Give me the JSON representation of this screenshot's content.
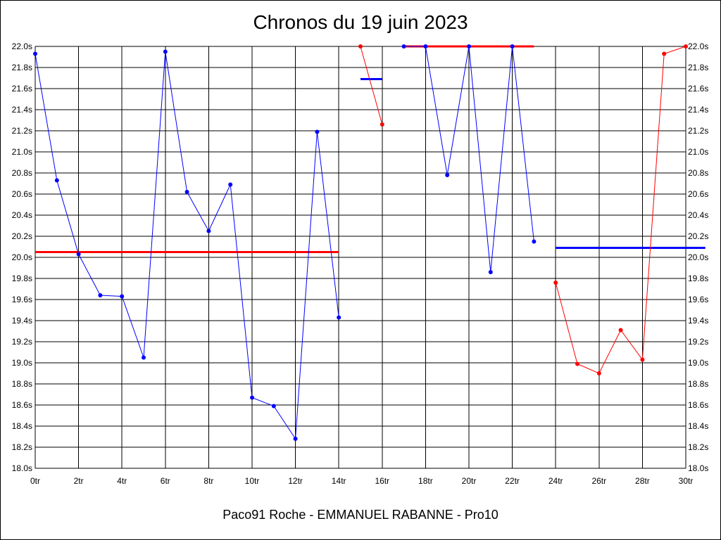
{
  "chart_data": {
    "type": "line",
    "title": "Chronos du 19 juin 2023",
    "subtitle": "Paco91 Roche - EMMANUEL RABANNE - Pro10",
    "xlabel": "",
    "ylabel": "",
    "xlim": [
      0,
      30
    ],
    "ylim": [
      18.0,
      22.0
    ],
    "grid": true,
    "legend": "none",
    "x_ticks": [
      "0tr",
      "2tr",
      "4tr",
      "6tr",
      "8tr",
      "10tr",
      "12tr",
      "14tr",
      "16tr",
      "18tr",
      "20tr",
      "22tr",
      "24tr",
      "26tr",
      "28tr",
      "30tr"
    ],
    "y_ticks": [
      "18.0s",
      "18.2s",
      "18.4s",
      "18.6s",
      "18.8s",
      "19.0s",
      "19.2s",
      "19.4s",
      "19.6s",
      "19.8s",
      "20.0s",
      "20.2s",
      "20.4s",
      "20.6s",
      "20.8s",
      "21.0s",
      "21.2s",
      "21.4s",
      "21.6s",
      "21.8s",
      "22.0s"
    ],
    "series": [
      {
        "color": "#0000ff",
        "points": [
          [
            0,
            21.93
          ],
          [
            1,
            20.73
          ],
          [
            2,
            20.03
          ],
          [
            3,
            19.64
          ],
          [
            4,
            19.63
          ],
          [
            5,
            19.05
          ],
          [
            6,
            21.95
          ],
          [
            7,
            20.62
          ],
          [
            8,
            20.25
          ],
          [
            9,
            20.69
          ],
          [
            10,
            18.67
          ],
          [
            11,
            18.59
          ],
          [
            12,
            18.28
          ],
          [
            13,
            21.19
          ],
          [
            14,
            19.43
          ]
        ]
      },
      {
        "color": "#ff0000",
        "points": [
          [
            15,
            22.0
          ],
          [
            16,
            21.26
          ]
        ]
      },
      {
        "color": "#0000ff",
        "points": [
          [
            17,
            22.0
          ],
          [
            18,
            22.0
          ],
          [
            19,
            20.78
          ],
          [
            20,
            22.0
          ],
          [
            21,
            19.86
          ],
          [
            22,
            22.0
          ],
          [
            23,
            20.15
          ]
        ]
      },
      {
        "color": "#ff0000",
        "points": [
          [
            24,
            19.76
          ],
          [
            25,
            18.99
          ],
          [
            26,
            18.9
          ],
          [
            27,
            19.31
          ],
          [
            28,
            19.03
          ],
          [
            29,
            21.93
          ],
          [
            30,
            22.0
          ]
        ]
      }
    ],
    "average_lines": [
      {
        "color": "#ff0000",
        "x_start": 0,
        "x_end": 14,
        "y": 20.05
      },
      {
        "color": "#0000ff",
        "x_start": 15,
        "x_end": 16,
        "y": 21.69
      },
      {
        "color": "#ff0000",
        "x_start": 17,
        "x_end": 23,
        "y": 22.0
      },
      {
        "color": "#0000ff",
        "x_start": 24,
        "x_end": 30.9,
        "y": 20.09
      }
    ]
  }
}
